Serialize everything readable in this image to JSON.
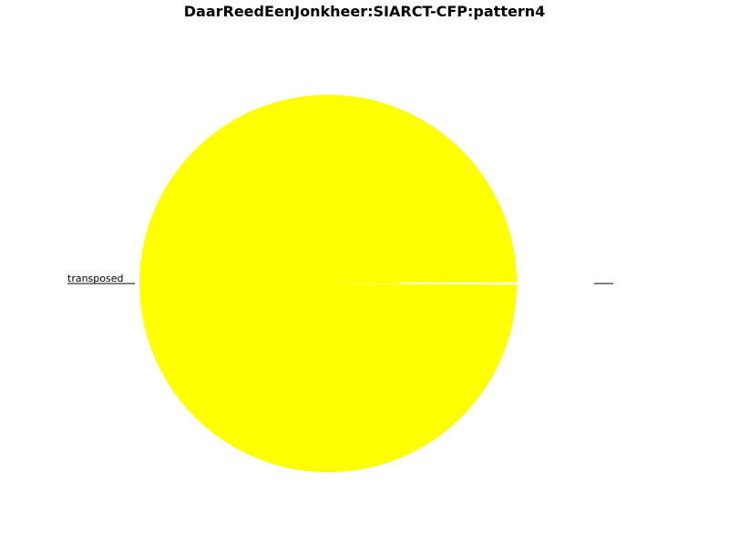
{
  "chart_data": {
    "type": "pie",
    "title": "DaarReedEenJonkheer:SIARCT-CFP:pattern4",
    "labels": [
      "transposed",
      ""
    ],
    "values": [
      99.9,
      0.1
    ],
    "colors": [
      "#ffff00",
      "#ffffff"
    ],
    "start_angle_deg": 0,
    "direction": "counterclockwise",
    "legend": "none"
  }
}
